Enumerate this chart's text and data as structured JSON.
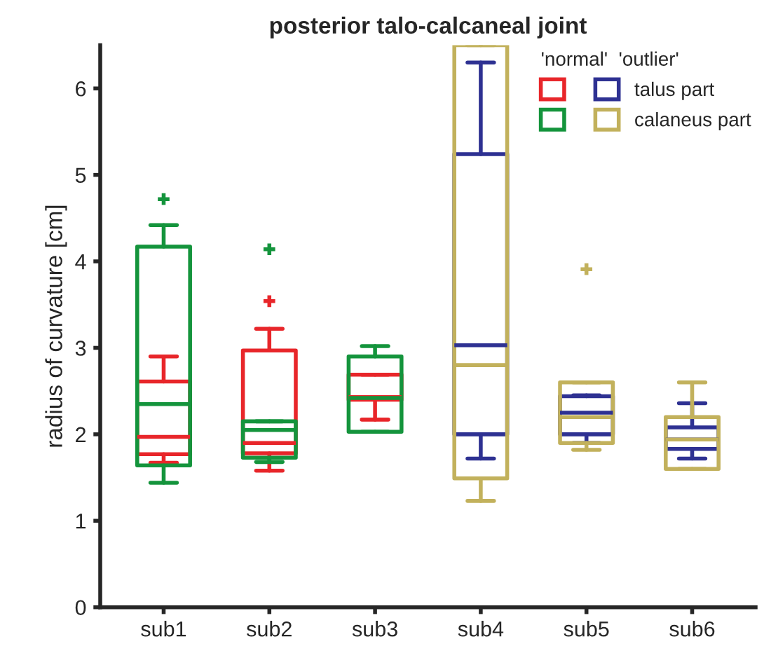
{
  "chart_data": {
    "type": "box",
    "title": "posterior talo-calcaneal joint",
    "ylabel": "radius of curvature [cm]",
    "legend_title": "'normal'  'outlier'",
    "legend": "top right",
    "grid": false,
    "categories": [
      "sub1",
      "sub2",
      "sub3",
      "sub4",
      "sub5",
      "sub6"
    ],
    "ylim": [
      0,
      6.5
    ],
    "yticks": [
      0,
      1,
      2,
      3,
      4,
      5,
      6
    ],
    "series": [
      {
        "color": "#e8262a",
        "boxes": [
          {
            "low": 1.67,
            "q1": 1.77,
            "median": 1.97,
            "q3": 2.61,
            "high": 2.9
          },
          {
            "low": 1.58,
            "q1": 1.78,
            "median": 1.9,
            "q3": 2.97,
            "high": 3.22,
            "outliers": [
              3.54
            ]
          },
          {
            "low": 2.17,
            "q1": 2.4,
            "median": 2.43,
            "q3": 2.69,
            "high": 2.69
          },
          null,
          null,
          null
        ]
      },
      {
        "color": "#14943c",
        "boxes": [
          {
            "low": 1.44,
            "q1": 1.64,
            "median": 2.35,
            "q3": 4.17,
            "high": 4.42,
            "outliers": [
              4.72
            ]
          },
          {
            "low": 1.68,
            "q1": 1.73,
            "median": 2.05,
            "q3": 2.15,
            "high": 2.15,
            "outliers": [
              4.14
            ]
          },
          {
            "low": 2.03,
            "q1": 2.03,
            "median": 2.42,
            "q3": 2.9,
            "high": 3.02
          },
          null,
          null,
          null
        ]
      },
      {
        "name": "talus part",
        "color": "#2e3192",
        "boxes": [
          null,
          null,
          null,
          {
            "low": 1.72,
            "q1": 2.0,
            "median": 3.03,
            "q3": 5.24,
            "high": 6.3
          },
          {
            "low": 1.9,
            "q1": 2.0,
            "median": 2.25,
            "q3": 2.44,
            "high": 2.45
          },
          {
            "low": 1.72,
            "q1": 1.83,
            "median": 1.94,
            "q3": 2.08,
            "high": 2.36
          }
        ]
      },
      {
        "name": "calaneus part",
        "color": "#c2b15c",
        "boxes": [
          null,
          null,
          null,
          {
            "low": 1.23,
            "q1": 1.49,
            "median": 2.8,
            "q3": 6.5,
            "high": 6.5
          },
          {
            "low": 1.82,
            "q1": 1.9,
            "median": 2.2,
            "q3": 2.6,
            "high": 2.6,
            "outliers": [
              3.91
            ]
          },
          {
            "low": 1.6,
            "q1": 1.6,
            "median": 1.94,
            "q3": 2.2,
            "high": 2.6
          }
        ]
      }
    ]
  }
}
